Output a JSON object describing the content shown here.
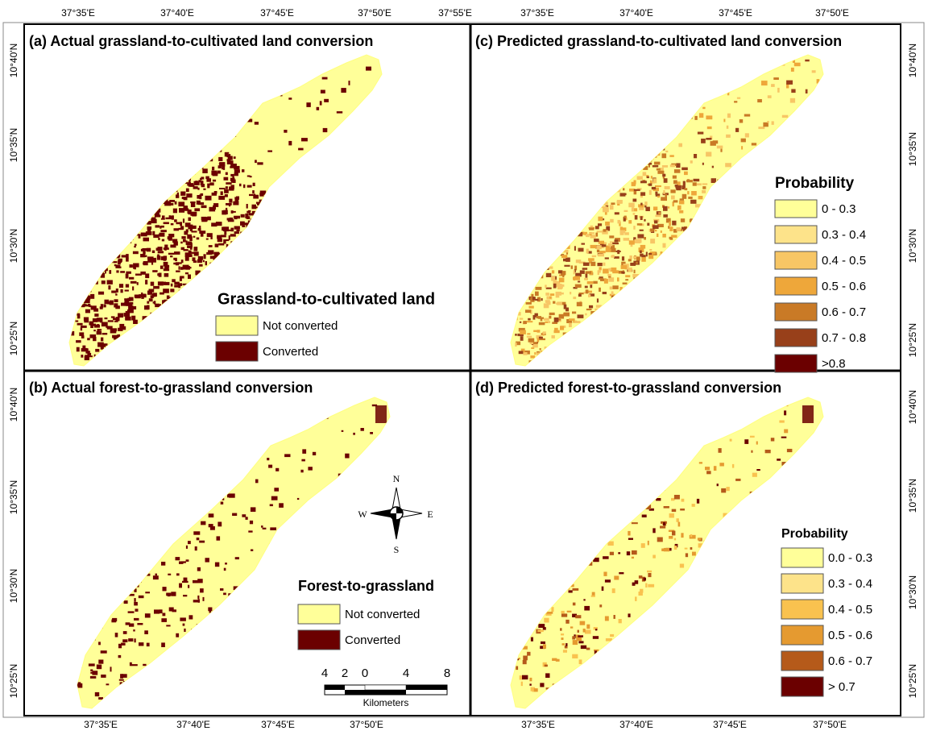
{
  "panels": [
    {
      "title": "(a) Actual grassland-to-cultivated land conversion",
      "legend": {
        "title": "Grassland-to-cultivated land",
        "items": [
          {
            "label": "Not converted",
            "color": "#ffff99"
          },
          {
            "label": "Converted",
            "color": "#6b0000"
          }
        ]
      }
    },
    {
      "title": "(b) Actual forest-to-grassland conversion",
      "legend": {
        "title": "Forest-to-grassland",
        "items": [
          {
            "label": "Not converted",
            "color": "#ffff99"
          },
          {
            "label": "Converted",
            "color": "#6b0000"
          }
        ]
      }
    },
    {
      "title": "(c) Predicted grassland-to-cultivated land conversion",
      "legend": {
        "title": "Probability",
        "items": [
          {
            "label": "0 - 0.3",
            "color": "#ffff99"
          },
          {
            "label": "0.3 - 0.4",
            "color": "#fde38a"
          },
          {
            "label": "0.4 - 0.5",
            "color": "#f7c665"
          },
          {
            "label": "0.5 - 0.6",
            "color": "#eea73a"
          },
          {
            "label": "0.6 - 0.7",
            "color": "#c97a26"
          },
          {
            "label": "0.7 - 0.8",
            "color": "#98401a"
          },
          {
            "label": ">0.8",
            "color": "#6b0000"
          }
        ]
      }
    },
    {
      "title": "(d) Predicted forest-to-grassland conversion",
      "legend": {
        "title": "Probability",
        "items": [
          {
            "label": "0.0 - 0.3",
            "color": "#ffff99"
          },
          {
            "label": "0.3 - 0.4",
            "color": "#fde38a"
          },
          {
            "label": "0.4 - 0.5",
            "color": "#f9c24f"
          },
          {
            "label": "0.5 - 0.6",
            "color": "#e59a30"
          },
          {
            "label": "0.6 - 0.7",
            "color": "#b55a1a"
          },
          {
            "label": "> 0.7",
            "color": "#6b0000"
          }
        ]
      }
    }
  ],
  "longitude_top_left": [
    "37°35'E",
    "37°40'E",
    "37°45'E",
    "37°50'E",
    "37°55'E"
  ],
  "longitude_top_right": [
    "37°35'E",
    "37°40'E",
    "37°45'E",
    "37°50'E"
  ],
  "longitude_bottom_left": [
    "37°35'E",
    "37°40'E",
    "37°45'E",
    "37°50'E"
  ],
  "longitude_bottom_right": [
    "37°35'E",
    "37°40'E",
    "37°45'E",
    "37°50'E"
  ],
  "latitude_top_left": [
    "10°40'N",
    "10°35'N",
    "10°30'N",
    "10°25'N"
  ],
  "latitude_bottom_left": [
    "10°40'N",
    "10°35'N",
    "10°30'N",
    "10°25'N"
  ],
  "latitude_top_right": [
    "10°40'N",
    "10°35'N",
    "10°30'N",
    "10°25'N"
  ],
  "latitude_bottom_right": [
    "10°40'N",
    "10°35'N",
    "10°30'N",
    "10°25'N"
  ],
  "compass": {
    "n": "N",
    "e": "E",
    "s": "S",
    "w": "W"
  },
  "scale_bar": {
    "ticks": [
      "4",
      "2",
      "0",
      "4",
      "8"
    ],
    "unit": "Kilometers"
  }
}
